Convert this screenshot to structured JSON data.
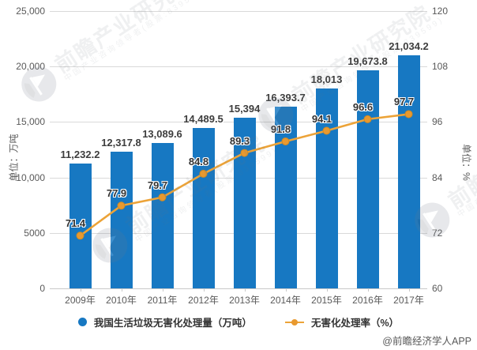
{
  "attribution": "@前瞻经济学人APP",
  "watermark": {
    "brand": "前瞻产业研究院",
    "tagline": "中国产业咨询领导者(股票:839599)",
    "logo": "qianzhan-logo"
  },
  "legend": [
    {
      "label": "我国生活垃圾无害化处理量（万吨）",
      "color": "#1778c2",
      "marker": "circle"
    },
    {
      "label": "无害化处理率（%）",
      "color": "#eca338",
      "marker": "line-dot"
    }
  ],
  "chart_data": {
    "type": "combo",
    "categories": [
      "2009年",
      "2010年",
      "2011年",
      "2012年",
      "2013年",
      "2014年",
      "2015年",
      "2016年",
      "2017年"
    ],
    "series": [
      {
        "name": "我国生活垃圾无害化处理量（万吨）",
        "type": "bar",
        "axis": "left",
        "color": "#1778c2",
        "values": [
          11232.2,
          12317.8,
          13089.6,
          14489.5,
          15394,
          16393.7,
          18013,
          19673.8,
          21034.2
        ],
        "labels": [
          "11,232.2",
          "12,317.8",
          "13,089.6",
          "14,489.5",
          "15,394",
          "16,393.7",
          "18,013",
          "19,673.8",
          "21,034.2"
        ]
      },
      {
        "name": "无害化处理率（%）",
        "type": "line",
        "axis": "right",
        "color": "#eca338",
        "marker_color": "#e8992f",
        "values": [
          71.4,
          77.9,
          79.7,
          84.8,
          89.3,
          91.8,
          94.1,
          96.6,
          97.7
        ],
        "labels": [
          "71.4",
          "77.9",
          "79.7",
          "84.8",
          "89.3",
          "91.8",
          "94.1",
          "96.6",
          "97.7"
        ]
      }
    ],
    "left_axis": {
      "title": "单位：万吨",
      "min": 0,
      "max": 25000,
      "ticks": [
        "0",
        "5000",
        "10,000",
        "15,000",
        "20,000",
        "25,000"
      ]
    },
    "right_axis": {
      "title": "单位：%",
      "min": 60,
      "max": 120,
      "ticks": [
        "60",
        "72",
        "84",
        "96",
        "108",
        "120"
      ]
    },
    "grid": true,
    "legend_position": "bottom"
  }
}
